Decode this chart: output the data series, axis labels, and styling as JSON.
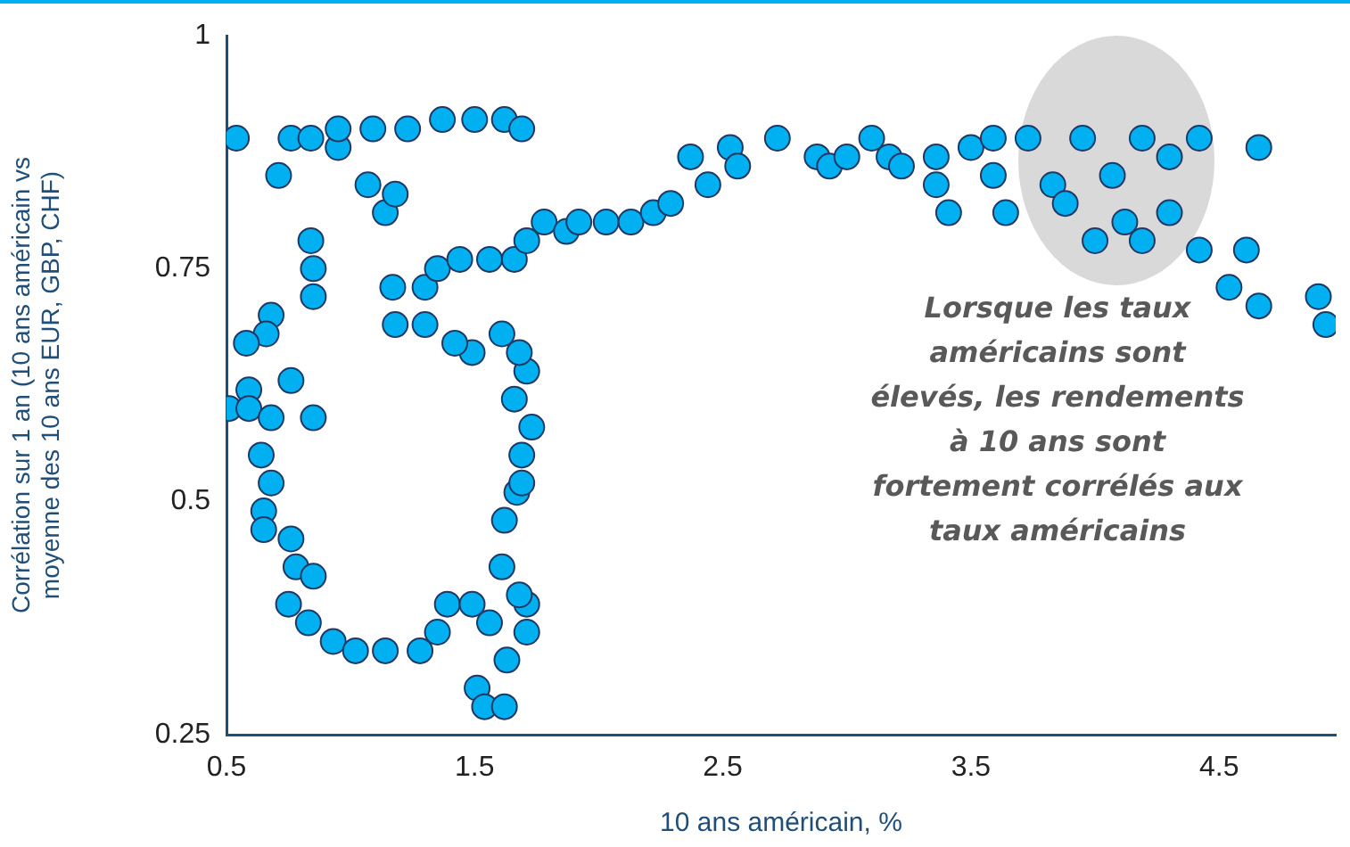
{
  "chart_data": {
    "type": "scatter",
    "xlabel": "10 ans américain, %",
    "ylabel": "Corrélation sur 1 an (10 ans américain vs moyenne des 10 ans EUR, GBP, CHF)",
    "annotations": [
      "Lorsque les taux américains sont élevés, les rendements à 10 ans sont fortement corrélés aux taux américains"
    ],
    "xlim": [
      0.5,
      4.97
    ],
    "xticks": [
      0.5,
      1.5,
      2.5,
      3.5,
      4.5
    ],
    "ylim": [
      0.25,
      1
    ],
    "yticks": [
      0.25,
      0.5,
      0.75,
      1
    ],
    "grid": false,
    "legend": false,
    "marker": "circle",
    "series": [
      {
        "color": "#00b0f0",
        "x": [
          0.54,
          0.71,
          0.76,
          0.84,
          0.95,
          0.95,
          1.07,
          1.09,
          1.14,
          1.18,
          1.23,
          1.37,
          1.5,
          1.62,
          1.69,
          0.84,
          0.85,
          0.85,
          0.68,
          0.66,
          0.58,
          0.59,
          0.76,
          0.51,
          0.59,
          0.68,
          0.85,
          0.64,
          0.68,
          0.65,
          0.65,
          0.76,
          0.78,
          0.85,
          0.75,
          0.83,
          0.93,
          1.02,
          1.14,
          1.28,
          1.35,
          1.39,
          1.49,
          1.56,
          1.51,
          1.54,
          1.62,
          1.63,
          1.71,
          1.71,
          1.68,
          1.61,
          1.62,
          1.67,
          1.69,
          1.69,
          1.73,
          1.66,
          1.71,
          1.68,
          1.61,
          1.49,
          1.42,
          1.3,
          1.18,
          1.17,
          1.3,
          1.35,
          1.44,
          1.56,
          1.66,
          1.71,
          1.78,
          1.87,
          1.92,
          2.03,
          2.13,
          2.22,
          2.29,
          2.37,
          2.44,
          2.53,
          2.56,
          2.72,
          2.88,
          2.93,
          3.0,
          3.1,
          3.17,
          3.22,
          3.36,
          3.5,
          3.59,
          3.73,
          3.95,
          4.19,
          4.42,
          4.66,
          4.3,
          4.07,
          3.83,
          3.59,
          3.36,
          3.41,
          3.64,
          3.88,
          4.12,
          4.3,
          4.0,
          4.19,
          4.42,
          4.61,
          4.54,
          4.66,
          4.9,
          4.93
        ],
        "values": [
          0.89,
          0.85,
          0.89,
          0.89,
          0.88,
          0.9,
          0.84,
          0.9,
          0.81,
          0.83,
          0.9,
          0.91,
          0.91,
          0.91,
          0.9,
          0.78,
          0.75,
          0.72,
          0.7,
          0.68,
          0.67,
          0.62,
          0.63,
          0.6,
          0.6,
          0.59,
          0.59,
          0.55,
          0.52,
          0.49,
          0.47,
          0.46,
          0.43,
          0.42,
          0.39,
          0.37,
          0.35,
          0.34,
          0.34,
          0.34,
          0.36,
          0.39,
          0.39,
          0.37,
          0.3,
          0.28,
          0.28,
          0.33,
          0.36,
          0.39,
          0.4,
          0.43,
          0.48,
          0.51,
          0.52,
          0.55,
          0.58,
          0.61,
          0.64,
          0.66,
          0.68,
          0.66,
          0.67,
          0.69,
          0.69,
          0.73,
          0.73,
          0.75,
          0.76,
          0.76,
          0.76,
          0.78,
          0.8,
          0.79,
          0.8,
          0.8,
          0.8,
          0.81,
          0.82,
          0.87,
          0.84,
          0.88,
          0.86,
          0.89,
          0.87,
          0.86,
          0.87,
          0.89,
          0.87,
          0.86,
          0.87,
          0.88,
          0.89,
          0.89,
          0.89,
          0.89,
          0.89,
          0.88,
          0.87,
          0.85,
          0.84,
          0.85,
          0.84,
          0.81,
          0.81,
          0.82,
          0.8,
          0.81,
          0.78,
          0.78,
          0.77,
          0.77,
          0.73,
          0.71,
          0.72,
          0.69
        ]
      }
    ]
  }
}
